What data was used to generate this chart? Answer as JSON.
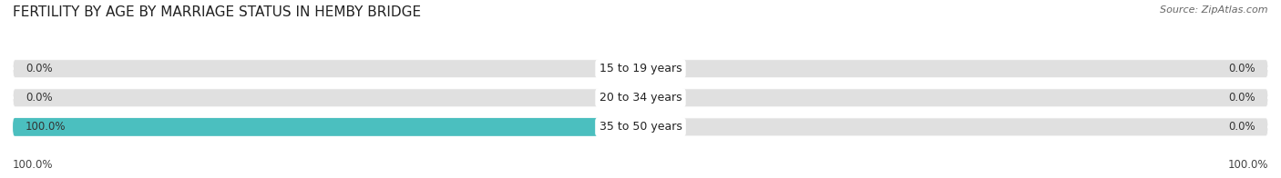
{
  "title": "FERTILITY BY AGE BY MARRIAGE STATUS IN HEMBY BRIDGE",
  "source": "Source: ZipAtlas.com",
  "categories": [
    "15 to 19 years",
    "20 to 34 years",
    "35 to 50 years"
  ],
  "married_values": [
    0.0,
    0.0,
    100.0
  ],
  "unmarried_values": [
    0.0,
    0.0,
    0.0
  ],
  "married_color": "#4bbfbf",
  "unmarried_color": "#f4a0b5",
  "bar_bg_color": "#e0e0e0",
  "background_color": "#ffffff",
  "xlim": 100,
  "min_bar_display": 4.0,
  "title_fontsize": 11,
  "source_fontsize": 8,
  "label_fontsize": 9,
  "val_fontsize": 8.5,
  "axis_label_left": "100.0%",
  "axis_label_right": "100.0%",
  "bar_gap": 0.18,
  "bar_height": 0.62
}
